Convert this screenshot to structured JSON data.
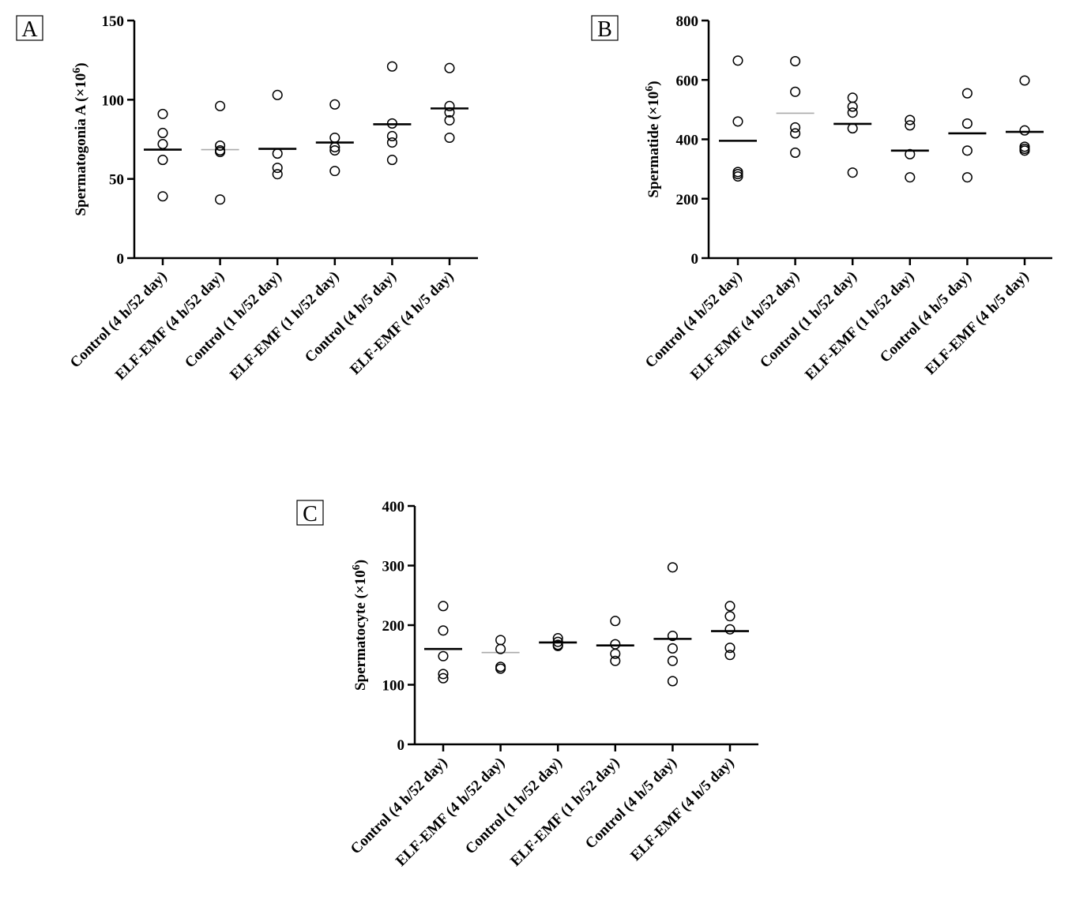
{
  "chart_data": [
    {
      "panel_label": "A",
      "type": "scatter",
      "ylabel": "Spermatogonia A (×10",
      "ylabel_sup": "6",
      "ylabel_close": ")",
      "ylim": [
        0,
        150
      ],
      "yticks": [
        0,
        50,
        100,
        150
      ],
      "categories": [
        "Control (4 h/52 day)",
        "ELF-EMF (4 h/52 day)",
        "Control (1 h/52 day)",
        "ELF-EMF (1 h/52 day)",
        "Control (4 h/5 day)",
        "ELF-EMF (4 h/5 day)"
      ],
      "points": [
        [
          91,
          79,
          72,
          62,
          39
        ],
        [
          96,
          71,
          67,
          68,
          37
        ],
        [
          103,
          66,
          57,
          53
        ],
        [
          97,
          76,
          70,
          68,
          55
        ],
        [
          121,
          85,
          77,
          73,
          62
        ],
        [
          120,
          96,
          92,
          87,
          76
        ]
      ],
      "means": [
        68.5,
        68.5,
        69,
        73,
        84.5,
        94.5
      ],
      "mean_line_colors": [
        "#000000",
        "#aaaaaa",
        "#000000",
        "#000000",
        "#000000",
        "#000000"
      ]
    },
    {
      "panel_label": "B",
      "type": "scatter",
      "ylabel": "Spermatide (×10",
      "ylabel_sup": "6",
      "ylabel_close": ")",
      "ylim": [
        0,
        800
      ],
      "yticks": [
        0,
        200,
        400,
        600,
        800
      ],
      "categories": [
        "Control (4 h/52 day)",
        "ELF-EMF (4 h/52 day)",
        "Control (1 h/52 day)",
        "ELF-EMF (1 h/52 day)",
        "Control (4 h/5 day)",
        "ELF-EMF (4 h/5 day)"
      ],
      "points": [
        [
          665,
          460,
          290,
          283,
          275
        ],
        [
          663,
          560,
          440,
          420,
          355
        ],
        [
          540,
          510,
          490,
          437,
          288
        ],
        [
          465,
          447,
          350,
          272
        ],
        [
          555,
          453,
          362,
          272
        ],
        [
          598,
          430,
          375,
          368,
          362
        ]
      ],
      "means": [
        395,
        488,
        452,
        362,
        420,
        425
      ],
      "mean_line_colors": [
        "#000000",
        "#aaaaaa",
        "#000000",
        "#000000",
        "#000000",
        "#000000"
      ]
    },
    {
      "panel_label": "C",
      "type": "scatter",
      "ylabel": "Spermatocyte (×10",
      "ylabel_sup": "6",
      "ylabel_close": ")",
      "ylim": [
        0,
        400
      ],
      "yticks": [
        0,
        100,
        200,
        300,
        400
      ],
      "categories": [
        "Control (4 h/52 day)",
        "ELF-EMF (4 h/52 day)",
        "Control (1 h/52 day)",
        "ELF-EMF (1 h/52 day)",
        "Control (4 h/5 day)",
        "ELF-EMF (4 h/5 day)"
      ],
      "points": [
        [
          232,
          191,
          148,
          118,
          111
        ],
        [
          175,
          160,
          130,
          127
        ],
        [
          178,
          172,
          167,
          165
        ],
        [
          207,
          168,
          152,
          140
        ],
        [
          297,
          182,
          161,
          140,
          106
        ],
        [
          232,
          215,
          193,
          162,
          150
        ]
      ],
      "means": [
        160,
        154,
        171,
        166,
        177,
        190
      ],
      "mean_line_colors": [
        "#000000",
        "#aaaaaa",
        "#000000",
        "#000000",
        "#000000",
        "#000000"
      ]
    }
  ]
}
